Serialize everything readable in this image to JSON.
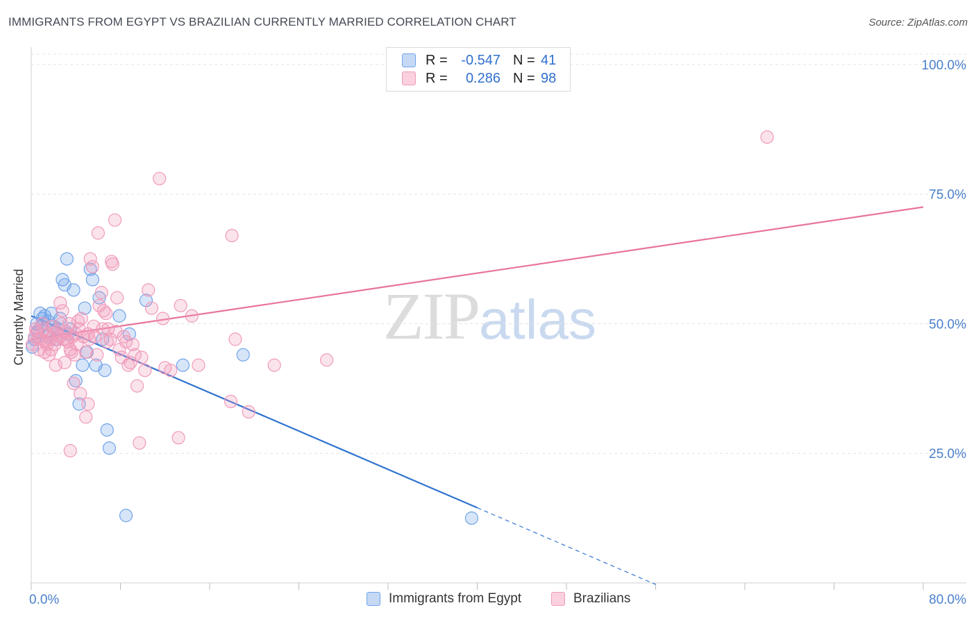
{
  "title": "IMMIGRANTS FROM EGYPT VS BRAZILIAN CURRENTLY MARRIED CORRELATION CHART",
  "source": "Source: ZipAtlas.com",
  "watermark": {
    "zip": "ZIP",
    "atlas": "atlas"
  },
  "colors": {
    "blue": "#6fa3e8",
    "pink": "#f09ab9",
    "blue_line": "#2f73d0",
    "pink_line": "#e8739c"
  },
  "legend": {
    "rows": [
      {
        "r_label": "R =",
        "r_value": "-0.547",
        "n_label": "N =",
        "n_value": "41"
      },
      {
        "r_label": "R =",
        "r_value": "0.286",
        "n_label": "N = ",
        "n_value": "98"
      }
    ]
  },
  "chart_data": {
    "type": "scatter",
    "title": "IMMIGRANTS FROM EGYPT VS BRAZILIAN CURRENTLY MARRIED CORRELATION CHART",
    "xlabel": "",
    "ylabel": "Currently Married",
    "xlim": [
      0,
      80
    ],
    "ylim": [
      0,
      102
    ],
    "x_tick_labels": [
      "0.0%",
      "80.0%"
    ],
    "y_ticks": [
      25,
      50,
      75,
      100
    ],
    "y_tick_labels": [
      "25.0%",
      "50.0%",
      "75.0%",
      "100.0%"
    ],
    "grid": true,
    "series": [
      {
        "name": "Immigrants from Egypt",
        "color": "#6fa3e8",
        "trend": {
          "x0": 0,
          "y0": 51.5,
          "x1": 40,
          "y1": 14.5,
          "dashed_to_x": 56
        },
        "points": [
          [
            0.1,
            45.5
          ],
          [
            0.3,
            47
          ],
          [
            0.5,
            50
          ],
          [
            0.8,
            52
          ],
          [
            1.2,
            51.5
          ],
          [
            1.5,
            50.5
          ],
          [
            2,
            49.5
          ],
          [
            2.2,
            47
          ],
          [
            2.6,
            51
          ],
          [
            2.8,
            58.5
          ],
          [
            3,
            57.5
          ],
          [
            3.2,
            62.5
          ],
          [
            3.5,
            49
          ],
          [
            3.8,
            56.5
          ],
          [
            4,
            39
          ],
          [
            4.3,
            34.5
          ],
          [
            4.6,
            42
          ],
          [
            5,
            44.5
          ],
          [
            5.3,
            60.5
          ],
          [
            5.5,
            58.5
          ],
          [
            5.8,
            42
          ],
          [
            6.1,
            55
          ],
          [
            6.4,
            47
          ],
          [
            6.6,
            41
          ],
          [
            6.8,
            29.5
          ],
          [
            7,
            26
          ],
          [
            7.9,
            51.5
          ],
          [
            8.5,
            13
          ],
          [
            8.8,
            48
          ],
          [
            10.3,
            54.5
          ],
          [
            13.6,
            42
          ],
          [
            19,
            44
          ],
          [
            39.5,
            12.5
          ],
          [
            1,
            51
          ],
          [
            1.8,
            52
          ],
          [
            0.6,
            48.5
          ],
          [
            2.4,
            49
          ],
          [
            3.3,
            48
          ],
          [
            1.4,
            47.5
          ],
          [
            0.9,
            49.5
          ],
          [
            4.8,
            53
          ]
        ]
      },
      {
        "name": "Brazilians",
        "color": "#f09ab9",
        "trend": {
          "x0": 0,
          "y0": 47,
          "x1": 80,
          "y1": 72.5
        },
        "points": [
          [
            0.1,
            46
          ],
          [
            0.3,
            47.5
          ],
          [
            0.5,
            48.5
          ],
          [
            0.7,
            45
          ],
          [
            0.9,
            47
          ],
          [
            1.1,
            49
          ],
          [
            1.3,
            46.5
          ],
          [
            1.5,
            48
          ],
          [
            1.7,
            47
          ],
          [
            1.9,
            49.5
          ],
          [
            2.1,
            46
          ],
          [
            2.3,
            48.5
          ],
          [
            2.5,
            47.5
          ],
          [
            2.7,
            50
          ],
          [
            2.9,
            47
          ],
          [
            3.1,
            48.5
          ],
          [
            3.3,
            46.5
          ],
          [
            3.5,
            45
          ],
          [
            3.7,
            47.5
          ],
          [
            3.9,
            44
          ],
          [
            4.1,
            46
          ],
          [
            4.3,
            49
          ],
          [
            4.5,
            51
          ],
          [
            4.7,
            47.5
          ],
          [
            4.9,
            44.5
          ],
          [
            5.1,
            48
          ],
          [
            5.3,
            62.5
          ],
          [
            5.5,
            61
          ],
          [
            5.7,
            47.5
          ],
          [
            5.9,
            44
          ],
          [
            6.1,
            53.5
          ],
          [
            6.3,
            56
          ],
          [
            6.5,
            52.5
          ],
          [
            6.7,
            52
          ],
          [
            6.9,
            49
          ],
          [
            7.1,
            47
          ],
          [
            7.3,
            61.5
          ],
          [
            7.5,
            70
          ],
          [
            7.7,
            55
          ],
          [
            7.9,
            45
          ],
          [
            8.1,
            43.5
          ],
          [
            8.3,
            47.5
          ],
          [
            8.5,
            46.5
          ],
          [
            8.7,
            42
          ],
          [
            8.9,
            42.5
          ],
          [
            9.1,
            46
          ],
          [
            9.3,
            44
          ],
          [
            9.5,
            38
          ],
          [
            9.7,
            27
          ],
          [
            9.9,
            43.5
          ],
          [
            10.2,
            41
          ],
          [
            10.5,
            56.5
          ],
          [
            10.8,
            53
          ],
          [
            11.5,
            78
          ],
          [
            11.8,
            51
          ],
          [
            12,
            41.5
          ],
          [
            12.5,
            41
          ],
          [
            13.2,
            28
          ],
          [
            13.4,
            53.5
          ],
          [
            14.4,
            51.5
          ],
          [
            15,
            42
          ],
          [
            17.9,
            35
          ],
          [
            18,
            67
          ],
          [
            18.3,
            47
          ],
          [
            19.5,
            33
          ],
          [
            21.8,
            42
          ],
          [
            26.5,
            43
          ],
          [
            66,
            86
          ],
          [
            2.2,
            42
          ],
          [
            3,
            42.5
          ],
          [
            3.5,
            25.5
          ],
          [
            4.4,
            36.5
          ],
          [
            4.9,
            32
          ],
          [
            5.1,
            34.5
          ],
          [
            3.8,
            38.5
          ],
          [
            6,
            67.5
          ],
          [
            4.2,
            50.5
          ],
          [
            2.6,
            54
          ],
          [
            1.6,
            44
          ],
          [
            1.2,
            44.5
          ],
          [
            0.4,
            49
          ],
          [
            2.8,
            52.5
          ],
          [
            3.4,
            50
          ],
          [
            5.6,
            49.5
          ],
          [
            6.8,
            46.5
          ],
          [
            7.6,
            48.5
          ],
          [
            1,
            50
          ],
          [
            1.8,
            45
          ],
          [
            2.4,
            47
          ],
          [
            3.6,
            44.5
          ],
          [
            4,
            48
          ],
          [
            5.2,
            47
          ],
          [
            6.4,
            49
          ],
          [
            7.2,
            62
          ],
          [
            0.6,
            47
          ],
          [
            1.4,
            46
          ],
          [
            2,
            48
          ],
          [
            3.2,
            47
          ]
        ]
      }
    ]
  },
  "bottom_legend": [
    {
      "label": "Immigrants from Egypt"
    },
    {
      "label": "Brazilians"
    }
  ]
}
